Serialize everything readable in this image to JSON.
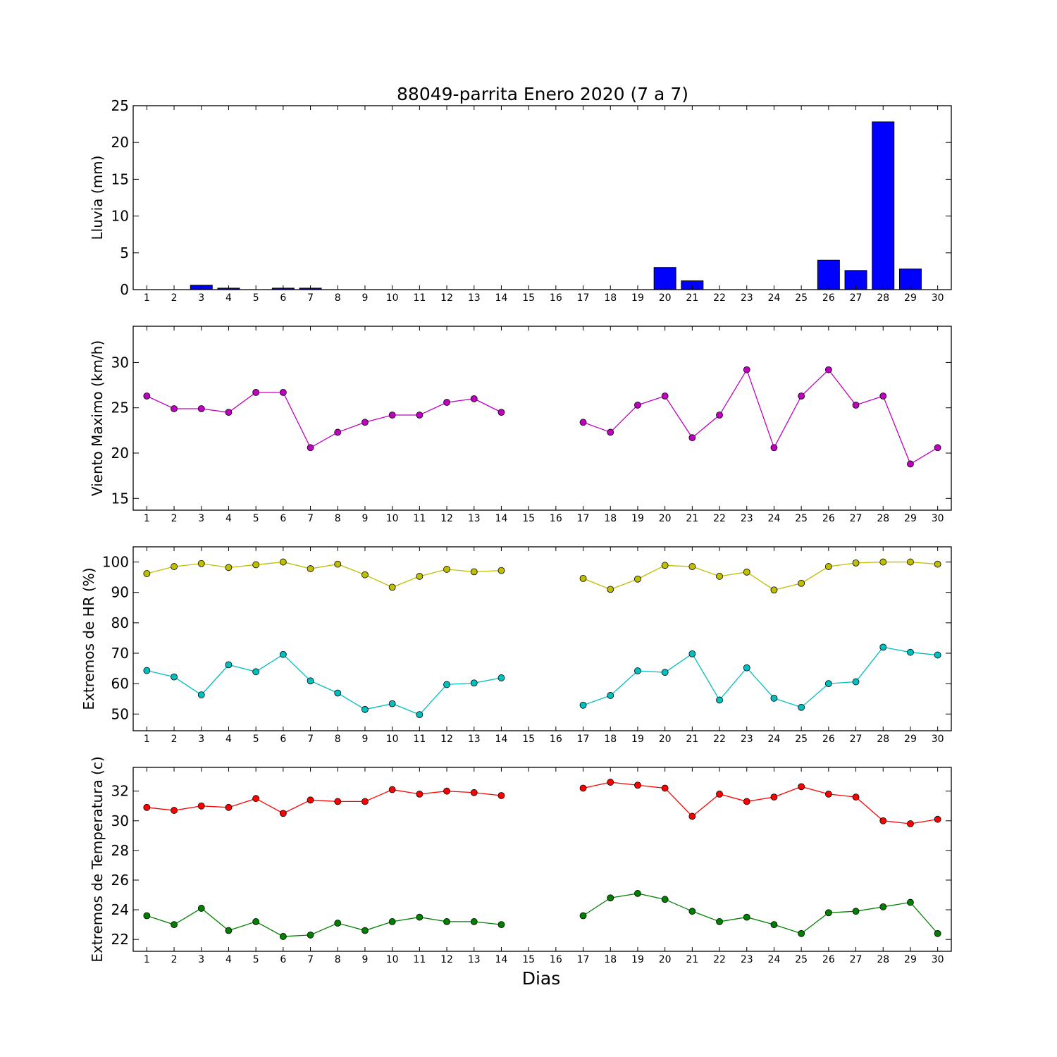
{
  "figure": {
    "title": "88049-parrita Enero 2020  (7 a 7)",
    "xlabel": "Dias"
  },
  "chart_data": [
    {
      "type": "bar",
      "title": "88049-parrita Enero 2020  (7 a 7)",
      "xlabel": "",
      "ylabel": "Lluvia (mm)",
      "categories": [
        1,
        2,
        3,
        4,
        5,
        6,
        7,
        8,
        9,
        10,
        11,
        12,
        13,
        14,
        15,
        16,
        17,
        18,
        19,
        20,
        21,
        22,
        23,
        24,
        25,
        26,
        27,
        28,
        29,
        30
      ],
      "values": [
        0,
        0,
        0.6,
        0.2,
        0,
        0.2,
        0.2,
        0,
        0,
        0,
        0,
        0,
        0,
        0,
        0,
        0,
        0,
        0,
        0,
        3.0,
        1.2,
        0,
        0,
        0,
        0,
        4.0,
        2.6,
        22.8,
        2.8,
        0
      ],
      "ylim": [
        0,
        25
      ],
      "yticks": [
        0,
        5,
        10,
        15,
        20,
        25
      ],
      "grid": false,
      "color": "#0000ff"
    },
    {
      "type": "line",
      "ylabel": "Viento Maximo (km/h)",
      "x": [
        1,
        2,
        3,
        4,
        5,
        6,
        7,
        8,
        9,
        10,
        11,
        12,
        13,
        14,
        15,
        16,
        17,
        18,
        19,
        20,
        21,
        22,
        23,
        24,
        25,
        26,
        27,
        28,
        29,
        30
      ],
      "series": [
        {
          "color": "#bf00bf",
          "values": [
            26.3,
            24.9,
            24.9,
            24.5,
            26.7,
            26.7,
            20.6,
            22.3,
            23.4,
            24.2,
            24.2,
            25.6,
            26.0,
            24.5,
            null,
            null,
            23.4,
            22.3,
            25.3,
            26.3,
            21.7,
            24.2,
            29.2,
            20.6,
            26.3,
            29.2,
            25.3,
            26.3,
            18.8,
            20.6
          ]
        }
      ],
      "ylim": [
        13.7,
        34
      ],
      "yticks": [
        15,
        20,
        25,
        30
      ],
      "grid": false
    },
    {
      "type": "line",
      "ylabel": "Extremos de HR (%)",
      "x": [
        1,
        2,
        3,
        4,
        5,
        6,
        7,
        8,
        9,
        10,
        11,
        12,
        13,
        14,
        15,
        16,
        17,
        18,
        19,
        20,
        21,
        22,
        23,
        24,
        25,
        26,
        27,
        28,
        29,
        30
      ],
      "series": [
        {
          "color": "#bfbf00",
          "values": [
            96.2,
            98.5,
            99.5,
            98.2,
            99.1,
            100,
            97.8,
            99.3,
            95.8,
            91.7,
            95.3,
            97.6,
            96.8,
            97.2,
            null,
            null,
            94.6,
            91.0,
            94.4,
            98.9,
            98.5,
            95.3,
            96.7,
            90.8,
            93.0,
            98.5,
            99.7,
            100,
            100,
            99.3
          ]
        },
        {
          "color": "#00bfbf",
          "values": [
            64.3,
            62.2,
            56.3,
            66.2,
            63.9,
            69.6,
            60.9,
            56.9,
            51.5,
            53.4,
            49.8,
            59.7,
            60.2,
            61.9,
            null,
            null,
            52.9,
            56.1,
            64.2,
            63.7,
            69.8,
            54.6,
            65.2,
            55.2,
            52.2,
            60.0,
            60.6,
            72.0,
            70.3,
            69.4
          ]
        }
      ],
      "ylim": [
        44.5,
        105
      ],
      "yticks": [
        50,
        60,
        70,
        80,
        90,
        100
      ],
      "grid": false
    },
    {
      "type": "line",
      "ylabel": "Extremos de Temperatura (c)",
      "x": [
        1,
        2,
        3,
        4,
        5,
        6,
        7,
        8,
        9,
        10,
        11,
        12,
        13,
        14,
        15,
        16,
        17,
        18,
        19,
        20,
        21,
        22,
        23,
        24,
        25,
        26,
        27,
        28,
        29,
        30
      ],
      "series": [
        {
          "color": "#ff0000",
          "values": [
            30.9,
            30.7,
            31.0,
            30.9,
            31.5,
            30.5,
            31.4,
            31.3,
            31.3,
            32.1,
            31.8,
            32.0,
            31.9,
            31.7,
            null,
            null,
            32.2,
            32.6,
            32.4,
            32.2,
            30.3,
            31.8,
            31.3,
            31.6,
            32.3,
            31.8,
            31.6,
            30.0,
            29.8,
            30.1
          ]
        },
        {
          "color": "#007f00",
          "values": [
            23.6,
            23.0,
            24.1,
            22.6,
            23.2,
            22.2,
            22.3,
            23.1,
            22.6,
            23.2,
            23.5,
            23.2,
            23.2,
            23.0,
            null,
            null,
            23.6,
            24.8,
            25.1,
            24.7,
            23.9,
            23.2,
            23.5,
            23.0,
            22.4,
            23.8,
            23.9,
            24.2,
            24.5,
            22.4
          ]
        }
      ],
      "ylim": [
        21.2,
        33.6
      ],
      "yticks": [
        22,
        24,
        26,
        28,
        30,
        32
      ],
      "grid": false
    }
  ]
}
